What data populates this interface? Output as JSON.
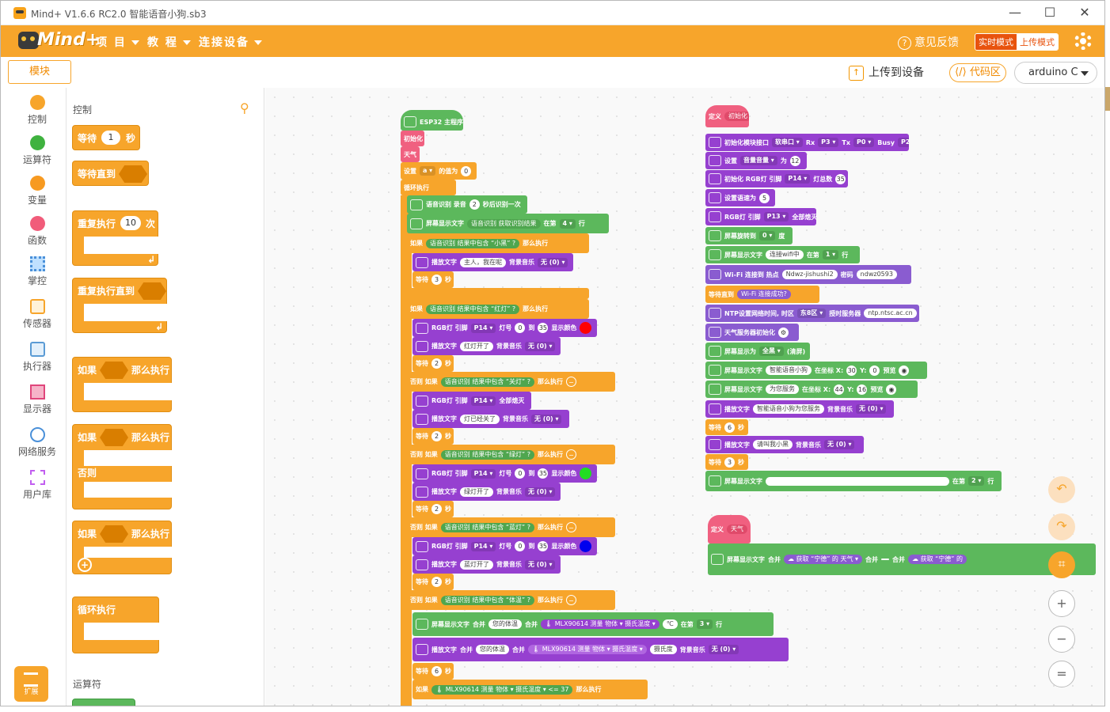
{
  "window": {
    "title": "Mind+ V1.6.6 RC2.0   智能语音小狗.sb3",
    "min": "—",
    "max": "☐",
    "close": "✕"
  },
  "menu": {
    "items": [
      "项 目",
      "教 程",
      "连接设备"
    ],
    "feedback": "意见反馈",
    "mode_live": "实时模式",
    "mode_upload": "上传模式"
  },
  "toolbar": {
    "blocks_tab": "模块",
    "upload": "上传到设备",
    "code": "代码区",
    "device": "arduino C"
  },
  "categories": [
    {
      "label": "控制",
      "color": "#f7a52b"
    },
    {
      "label": "运算符",
      "color": "#5cb85c"
    },
    {
      "label": "变量",
      "color": "#f79a21"
    },
    {
      "label": "函数",
      "color": "#f15c7a"
    },
    {
      "label": "掌控",
      "color": "#4a90d9"
    },
    {
      "label": "传感器",
      "color": "#f7a52b"
    },
    {
      "label": "执行器",
      "color": "#5a9bd5"
    },
    {
      "label": "显示器",
      "color": "#e0457b"
    },
    {
      "label": "网络服务",
      "color": "#4a90d9"
    },
    {
      "label": "用户库",
      "color": "#9b59b6"
    }
  ],
  "extension": "扩展",
  "flyout": {
    "heading": "控制",
    "heading2": "运算符",
    "wait": "等待",
    "wait_num": "1",
    "wait_unit": "秒",
    "wait_until": "等待直到",
    "repeat": "重复执行",
    "repeat_num": "10",
    "repeat_unit": "次",
    "repeat_until": "重复执行直到",
    "if": "如果",
    "then": "那么执行",
    "else": "否则",
    "forever": "循环执行"
  },
  "ws": {
    "main_hat": "ESP32 主程序",
    "b_init": "初始化",
    "b_weather": "天气",
    "b_set_a": "设置",
    "b_set_a_var": "a ▾",
    "b_set_a_val": "的值为",
    "b_set_a_num": "0",
    "b_loop": "循环执行",
    "b_rec": "语音识别 录音",
    "b_rec_n": "2",
    "b_rec_t": "秒后识别一次",
    "b_disp": "屏幕显示文字",
    "b_disp_r": "语音识别 获取识别结果",
    "b_disp_at": "在第",
    "b_disp_n": "4 ▾",
    "b_disp_row": "行",
    "if1": "如果",
    "cond_head": "语音识别 结果中包含",
    "then": "那么执行",
    "if1_v": "小黑",
    "say": "播放文字",
    "say1": "主人，我在呢",
    "bgm": "背景音乐",
    "none": "无 (0) ▾",
    "wait": "等待",
    "sec": "秒",
    "w3": "3",
    "w2": "2",
    "w6": "6",
    "if2_v": "红灯",
    "rgb": "RGB灯 引脚",
    "p14": "P14 ▾",
    "lamp": "灯号",
    "n0": "0",
    "to": "到",
    "n35": "35",
    "showc": "显示颜色",
    "say2": "红灯开了",
    "elif": "否则 如果",
    "if3_v": "关灯",
    "alloff": "全部熄灭",
    "say3": "灯已经关了",
    "if4_v": "绿灯",
    "say4": "绿灯开了",
    "if5_v": "蓝灯",
    "say5": "蓝灯开了",
    "if6_v": "体温",
    "join": "合并",
    "tmp_lbl": "您的体温",
    "mlx": "MLX90614 测量",
    "obj": "物体 ▾",
    "celsius": "摄氏温度 ▾",
    "degc": "℃",
    "row3": "3 ▾",
    "say_f": "摄氏度",
    "lte": "<=",
    "n37": "37",
    "def1": "定义",
    "def1_n": "初始化",
    "i1": "初始化模块接口",
    "i1a": "软串口 ▾",
    "i1b": "Rx",
    "i1c": "P3 ▾",
    "i1d": "Tx",
    "i1e": "P0 ▾",
    "i1f": "Busy",
    "i1g": "P2 ▾",
    "i2": "设置",
    "i2a": "音量音量 ▾",
    "i2b": "为",
    "i2c": "12",
    "i3": "初始化 RGB灯 引脚",
    "i3a": "P14 ▾",
    "i3b": "灯总数",
    "i3c": "35",
    "i4": "设置语速为",
    "i4a": "5",
    "i5": "RGB灯 引脚",
    "i5a": "P13 ▾",
    "i5b": "全部熄灭",
    "i6": "屏幕旋转到",
    "i6a": "0 ▾",
    "i6b": "度",
    "i7": "屏幕显示文字",
    "i7a": "连接wifi中",
    "i7b": "在第",
    "i7c": "1 ▾",
    "i7d": "行",
    "i8": "Wi-Fi 连接到 热点",
    "i8a": "Ndwz-jishushi2",
    "i8b": "密码",
    "i8c": "ndwz0593",
    "i9": "等待直到",
    "i9a": "Wi-Fi 连接成功?",
    "i10": "NTP设置网络时间, 时区",
    "i10a": "东8区 ▾",
    "i10b": "授时服务器",
    "i10c": "ntp.ntsc.ac.cn",
    "i11": "天气服务器初始化",
    "i12": "屏幕显示为",
    "i12a": "全黑 ▾",
    "i12b": "(清屏)",
    "i13": "屏幕显示文字",
    "i13a": "智能语音小狗",
    "i13b": "在坐标 X:",
    "i13c": "30",
    "i13d": "Y:",
    "i13e": "0",
    "i13f": "预览",
    "i14": "屏幕显示文字",
    "i14a": "为您服务",
    "i14b": "在坐标 X:",
    "i14c": "44",
    "i14d": "Y:",
    "i14e": "16",
    "i14f": "预览",
    "i15": "播放文字",
    "i15a": "智能语音小狗为您服务",
    "i15b": "背景音乐",
    "i15c": "无 (0) ▾",
    "i16": "等待",
    "i16a": "6",
    "i16b": "秒",
    "i17": "播放文字",
    "i17a": "请叫我小黑",
    "i17b": "背景音乐",
    "i17c": "无 (0) ▾",
    "i18": "等待",
    "i18a": "3",
    "i18b": "秒",
    "i19": "屏幕显示文字",
    "i19a": "",
    "i19b": "在第",
    "i19c": "2 ▾",
    "i19d": "行",
    "def2": "定义",
    "def2_n": "天气",
    "w1": "屏幕显示文字",
    "wj": "合并",
    "wget": "获取",
    "wcity": "宁德",
    "wof": "的",
    "wkind": "天气 ▾",
    "wsp": " "
  },
  "controls": {
    "undo": "↶",
    "redo": "↷",
    "crop": "⌗",
    "zoom_in": "+",
    "zoom_out": "−",
    "reset": "="
  }
}
